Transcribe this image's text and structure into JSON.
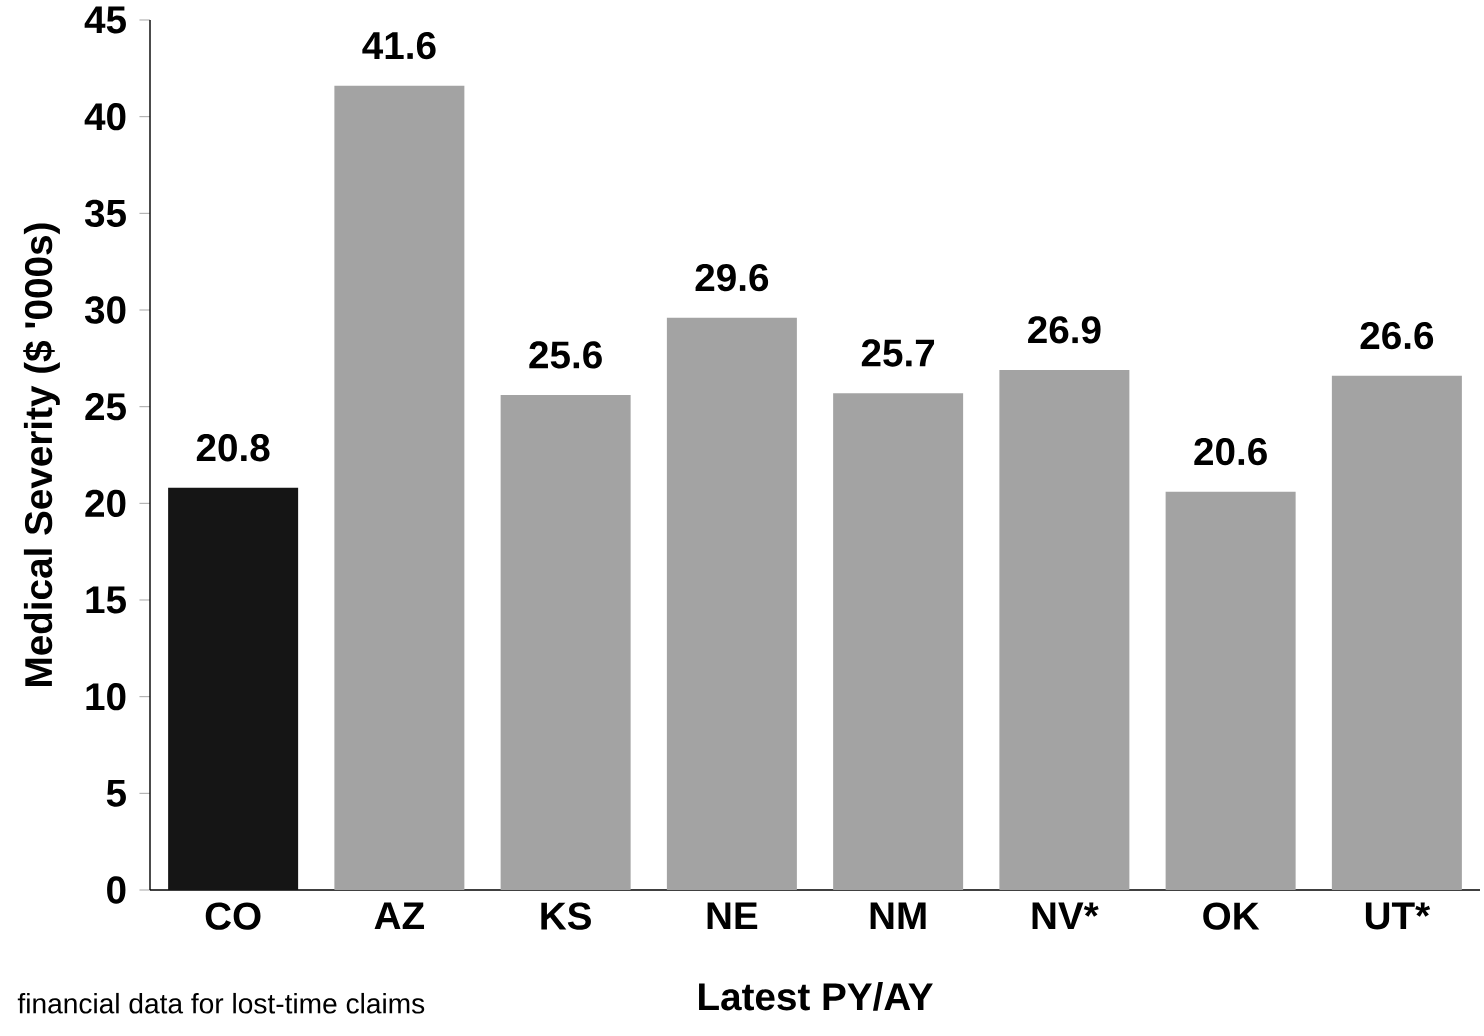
{
  "chart_data": {
    "type": "bar",
    "xlabel": "Latest PY/AY",
    "ylabel": "Medical Severity ($ '000s)",
    "categories": [
      "CO",
      "AZ",
      "KS",
      "NE",
      "NM",
      "NV*",
      "OK",
      "UT*"
    ],
    "values": [
      20.8,
      41.6,
      25.6,
      29.6,
      25.7,
      26.9,
      20.6,
      26.6
    ],
    "colors": [
      "#151515",
      "#a3a3a3",
      "#a3a3a3",
      "#a3a3a3",
      "#a3a3a3",
      "#a3a3a3",
      "#a3a3a3",
      "#a3a3a3"
    ],
    "ylim": [
      0,
      45
    ],
    "yticks": [
      0,
      5,
      10,
      15,
      20,
      25,
      30,
      35,
      40,
      45
    ],
    "data_labels": true,
    "grid": false,
    "annotations": [
      "financial data for lost-time claims"
    ]
  }
}
